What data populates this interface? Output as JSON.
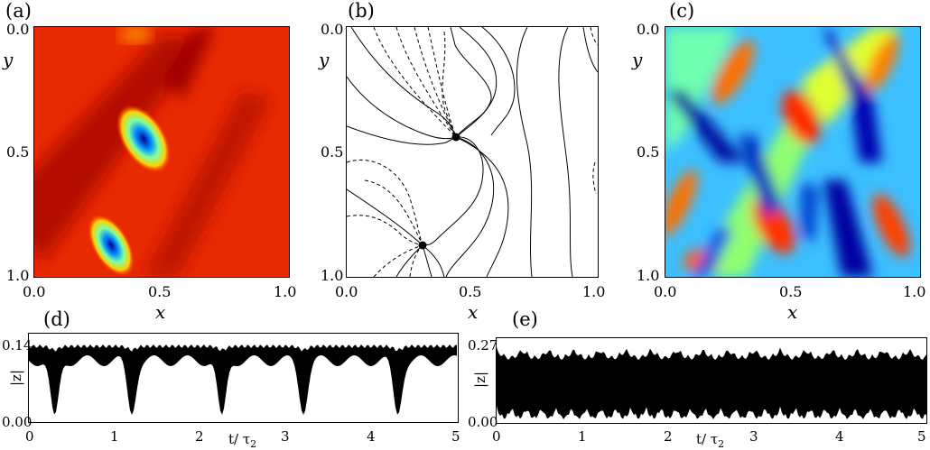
{
  "panels": {
    "a": {
      "label": "(a)",
      "xlabel": "x",
      "ylabel": "y",
      "xticks": [
        "0.0",
        "0.5",
        "1.0"
      ],
      "yticks": [
        "0.0",
        "0.5",
        "1.0"
      ]
    },
    "b": {
      "label": "(b)",
      "xlabel": "x",
      "ylabel": "y",
      "xticks": [
        "0.0",
        "0.5",
        "1.0"
      ],
      "yticks": [
        "0.0",
        "0.5",
        "1.0"
      ]
    },
    "c": {
      "label": "(c)",
      "xlabel": "x",
      "ylabel": "y",
      "xticks": [
        "0.0",
        "0.5",
        "1.0"
      ],
      "yticks": [
        "0.0",
        "0.5",
        "1.0"
      ]
    },
    "d": {
      "label": "(d)",
      "ylabel": "|z|",
      "xlabel_main": "t/ τ",
      "xlabel_sub": "2",
      "xticks": [
        "0",
        "1",
        "2",
        "3",
        "4",
        "5"
      ],
      "yticks": [
        "0.14",
        "0.00"
      ]
    },
    "e": {
      "label": "(e)",
      "ylabel": "|z|",
      "xlabel_main": "t/ τ",
      "xlabel_sub": "2",
      "xticks": [
        "0",
        "1",
        "2",
        "3",
        "4",
        "5"
      ],
      "yticks": [
        "0.27",
        "0.00"
      ]
    }
  },
  "colors": {
    "jet_low": "#00008f",
    "jet_mid": "#7fff7f",
    "jet_high": "#ff2000",
    "line": "#000000"
  },
  "chart_data": [
    {
      "type": "heatmap",
      "title": "(a)",
      "xlabel": "x",
      "ylabel": "y",
      "xlim": [
        0,
        1
      ],
      "ylim": [
        0,
        1
      ],
      "defects": [
        {
          "x": 0.43,
          "y": 0.45
        },
        {
          "x": 0.3,
          "y": 0.88
        }
      ]
    },
    {
      "type": "line",
      "title": "(b)",
      "xlabel": "x",
      "ylabel": "y",
      "xlim": [
        0,
        1
      ],
      "ylim": [
        0,
        1
      ],
      "points": [
        {
          "x": 0.43,
          "y": 0.45
        },
        {
          "x": 0.3,
          "y": 0.88
        }
      ]
    },
    {
      "type": "heatmap",
      "title": "(c)",
      "xlabel": "x",
      "ylabel": "y",
      "xlim": [
        0,
        1
      ],
      "ylim": [
        0,
        1
      ]
    },
    {
      "type": "line",
      "title": "(d)",
      "xlabel": "t/τ2",
      "ylabel": "|z|",
      "xlim": [
        0,
        5
      ],
      "ylim": [
        0,
        0.14
      ],
      "dips": [
        0.3,
        1.2,
        2.25,
        3.2,
        4.3
      ]
    },
    {
      "type": "line",
      "title": "(e)",
      "xlabel": "t/τ2",
      "ylabel": "|z|",
      "xlim": [
        0,
        5
      ],
      "ylim": [
        0,
        0.27
      ]
    }
  ]
}
